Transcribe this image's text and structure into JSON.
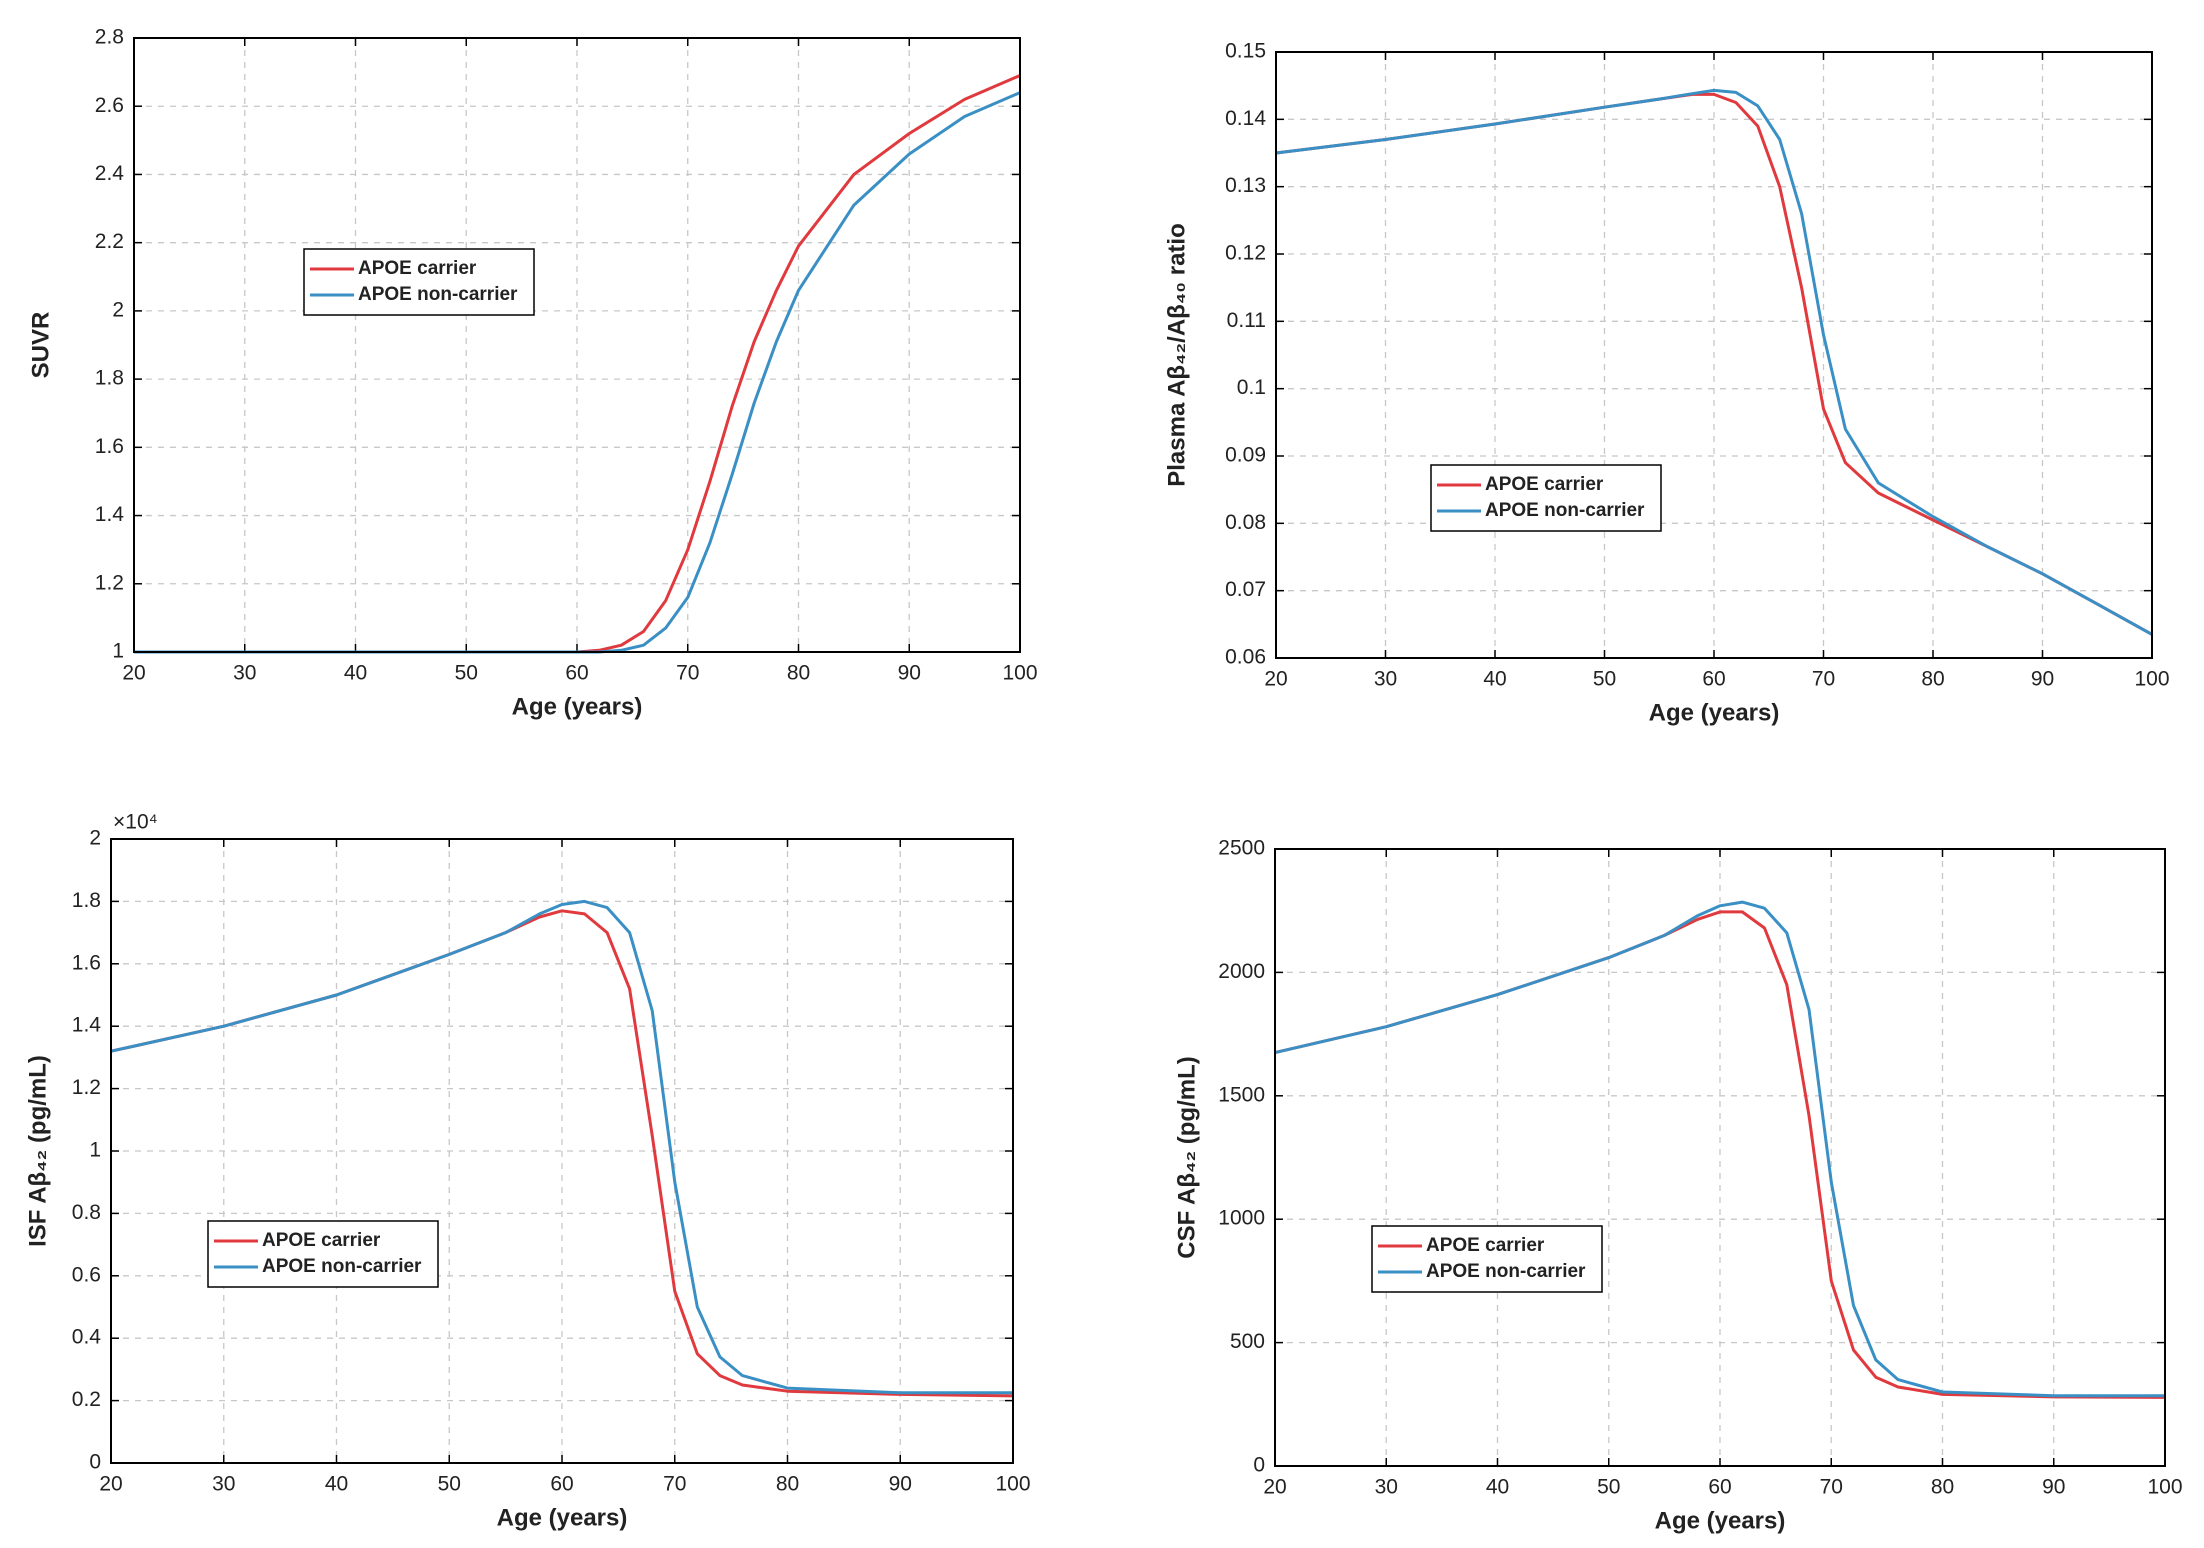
{
  "chart_data": [
    {
      "type": "line",
      "ylabel": "SUVR",
      "xlabel": "Age (years)",
      "x": [
        20,
        30,
        40,
        50,
        60,
        62,
        64,
        66,
        68,
        70,
        72,
        74,
        76,
        78,
        80,
        85,
        90,
        95,
        100
      ],
      "series": [
        {
          "name": "APOE carrier",
          "color": "#e0393e",
          "values": [
            1,
            1,
            1,
            1,
            1,
            1.005,
            1.02,
            1.06,
            1.15,
            1.3,
            1.5,
            1.72,
            1.91,
            2.06,
            2.19,
            2.4,
            2.52,
            2.62,
            2.69
          ]
        },
        {
          "name": "APOE non-carrier",
          "color": "#3a8fc4",
          "values": [
            1,
            1,
            1,
            1,
            1,
            1,
            1.005,
            1.02,
            1.07,
            1.16,
            1.32,
            1.52,
            1.73,
            1.91,
            2.06,
            2.31,
            2.46,
            2.57,
            2.64
          ]
        }
      ],
      "xlim": [
        20,
        100
      ],
      "xticks": [
        20,
        30,
        40,
        50,
        60,
        70,
        80,
        90,
        100
      ],
      "ylim": [
        1,
        2.8
      ],
      "yticks": [
        1,
        1.2,
        1.4,
        1.6,
        1.8,
        2,
        2.2,
        2.4,
        2.6,
        2.8
      ],
      "grid": true
    },
    {
      "type": "line",
      "ylabel": "Plasma Aβ₄₂/Aβ₄₀ ratio",
      "xlabel": "Age (years)",
      "x": [
        20,
        30,
        40,
        50,
        55,
        58,
        60,
        62,
        64,
        66,
        68,
        70,
        72,
        75,
        80,
        85,
        90,
        95,
        100
      ],
      "series": [
        {
          "name": "APOE carrier",
          "color": "#e0393e",
          "values": [
            0.135,
            0.137,
            0.1393,
            0.1418,
            0.143,
            0.1437,
            0.1437,
            0.1425,
            0.139,
            0.13,
            0.115,
            0.097,
            0.089,
            0.0845,
            0.0805,
            0.0765,
            0.0725,
            0.068,
            0.0635
          ]
        },
        {
          "name": "APOE non-carrier",
          "color": "#3a8fc4",
          "values": [
            0.135,
            0.137,
            0.1393,
            0.1418,
            0.143,
            0.1438,
            0.1443,
            0.144,
            0.142,
            0.137,
            0.126,
            0.108,
            0.094,
            0.086,
            0.081,
            0.0765,
            0.0725,
            0.068,
            0.0635
          ]
        }
      ],
      "xlim": [
        20,
        100
      ],
      "xticks": [
        20,
        30,
        40,
        50,
        60,
        70,
        80,
        90,
        100
      ],
      "ylim": [
        0.06,
        0.15
      ],
      "yticks": [
        0.06,
        0.07,
        0.08,
        0.09,
        0.1,
        0.11,
        0.12,
        0.13,
        0.14,
        0.15
      ],
      "grid": true
    },
    {
      "type": "line",
      "ylabel": "ISF Aβ₄₂ (pg/mL)",
      "xlabel": "Age (years)",
      "y_multiplier": "×10⁴",
      "x": [
        20,
        30,
        40,
        50,
        55,
        58,
        60,
        62,
        64,
        66,
        68,
        70,
        72,
        74,
        76,
        80,
        90,
        100
      ],
      "series": [
        {
          "name": "APOE carrier",
          "color": "#e0393e",
          "values": [
            1.32,
            1.4,
            1.5,
            1.63,
            1.7,
            1.75,
            1.77,
            1.76,
            1.7,
            1.52,
            1.05,
            0.55,
            0.35,
            0.28,
            0.25,
            0.23,
            0.22,
            0.215
          ]
        },
        {
          "name": "APOE non-carrier",
          "color": "#3a8fc4",
          "values": [
            1.32,
            1.4,
            1.5,
            1.63,
            1.7,
            1.76,
            1.79,
            1.8,
            1.78,
            1.7,
            1.45,
            0.9,
            0.5,
            0.34,
            0.28,
            0.24,
            0.225,
            0.225
          ]
        }
      ],
      "xlim": [
        20,
        100
      ],
      "xticks": [
        20,
        30,
        40,
        50,
        60,
        70,
        80,
        90,
        100
      ],
      "ylim": [
        0,
        2
      ],
      "yticks": [
        0,
        0.2,
        0.4,
        0.6,
        0.8,
        1,
        1.2,
        1.4,
        1.6,
        1.8,
        2
      ],
      "grid": true
    },
    {
      "type": "line",
      "ylabel": "CSF Aβ₄₂ (pg/mL)",
      "xlabel": "Age (years)",
      "x": [
        20,
        30,
        40,
        50,
        55,
        58,
        60,
        62,
        64,
        66,
        68,
        70,
        72,
        74,
        76,
        80,
        90,
        100
      ],
      "series": [
        {
          "name": "APOE carrier",
          "color": "#e0393e",
          "values": [
            1675,
            1780,
            1910,
            2060,
            2150,
            2215,
            2245,
            2245,
            2180,
            1950,
            1420,
            750,
            470,
            360,
            320,
            290,
            280,
            278
          ]
        },
        {
          "name": "APOE non-carrier",
          "color": "#3a8fc4",
          "values": [
            1675,
            1780,
            1910,
            2060,
            2150,
            2230,
            2270,
            2285,
            2260,
            2160,
            1850,
            1150,
            650,
            430,
            350,
            300,
            285,
            285
          ]
        }
      ],
      "xlim": [
        20,
        100
      ],
      "xticks": [
        20,
        30,
        40,
        50,
        60,
        70,
        80,
        90,
        100
      ],
      "ylim": [
        0,
        2500
      ],
      "yticks": [
        0,
        500,
        1000,
        1500,
        2000,
        2500
      ],
      "grid": true
    }
  ]
}
